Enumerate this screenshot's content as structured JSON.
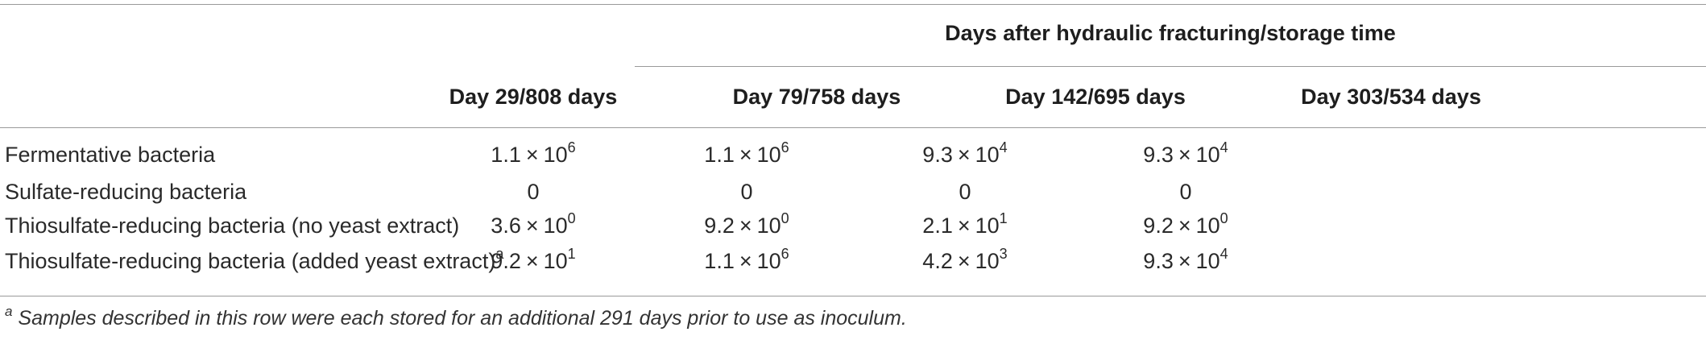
{
  "table": {
    "group_header": "Days after hydraulic fracturing/storage time",
    "columns": [
      "Day 29/808 days",
      "Day 79/758 days",
      "Day 142/695 days",
      "Day 303/534 days"
    ],
    "rows": [
      {
        "label": "Fermentative bacteria",
        "label_sup": "",
        "values": [
          {
            "mantissa": "1.1",
            "exp": "6"
          },
          {
            "mantissa": "1.1",
            "exp": "6"
          },
          {
            "mantissa": "9.3",
            "exp": "4"
          },
          {
            "mantissa": "9.3",
            "exp": "4"
          }
        ]
      },
      {
        "label": "Sulfate-reducing bacteria",
        "label_sup": "",
        "values": [
          {
            "plain": "0"
          },
          {
            "plain": "0"
          },
          {
            "plain": "0"
          },
          {
            "plain": "0"
          }
        ]
      },
      {
        "label": "Thiosulfate-reducing bacteria (no yeast extract)",
        "label_sup": "",
        "values": [
          {
            "mantissa": "3.6",
            "exp": "0"
          },
          {
            "mantissa": "9.2",
            "exp": "0"
          },
          {
            "mantissa": "2.1",
            "exp": "1"
          },
          {
            "mantissa": "9.2",
            "exp": "0"
          }
        ]
      },
      {
        "label": "Thiosulfate-reducing bacteria (added yeast extract)",
        "label_sup": "a",
        "values": [
          {
            "mantissa": "9.2",
            "exp": "1"
          },
          {
            "mantissa": "1.1",
            "exp": "6"
          },
          {
            "mantissa": "4.2",
            "exp": "3"
          },
          {
            "mantissa": "9.3",
            "exp": "4"
          }
        ]
      }
    ],
    "times_symbol": "×",
    "base": "10"
  },
  "footnote": {
    "marker": "a",
    "text": " Samples described in this row were each stored for an additional 291 days prior to use as inoculum."
  }
}
